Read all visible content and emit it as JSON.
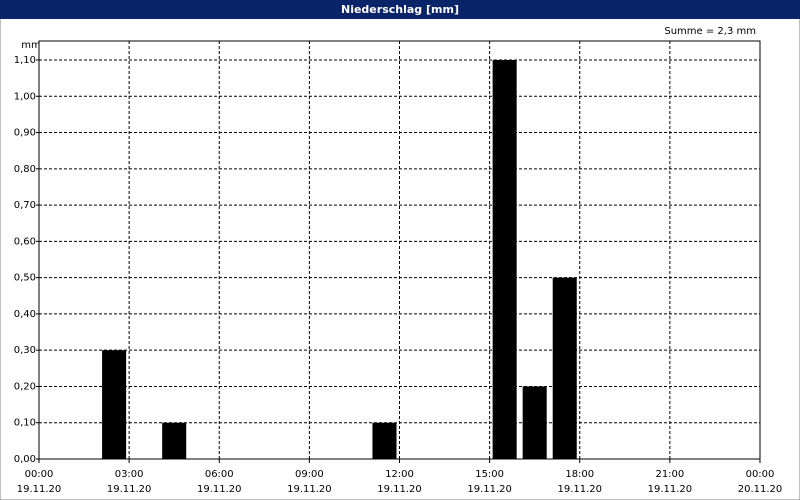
{
  "chart_data": {
    "type": "bar",
    "title": "Niederschlag [mm]",
    "y_label": "mm",
    "annotation": "Summe = 2,3 mm",
    "x": [
      2.5,
      4.5,
      11.5,
      15.5,
      16.5,
      17.5
    ],
    "values": [
      0.3,
      0.1,
      0.1,
      1.1,
      0.2,
      0.5
    ],
    "color": "#000000",
    "xlim": [
      0,
      24
    ],
    "xticks": [
      {
        "value": 0,
        "label": "00:00",
        "date": "19.11.20"
      },
      {
        "value": 3,
        "label": "03:00",
        "date": "19.11.20"
      },
      {
        "value": 6,
        "label": "06:00",
        "date": "19.11.20"
      },
      {
        "value": 9,
        "label": "09:00",
        "date": "19.11.20"
      },
      {
        "value": 12,
        "label": "12:00",
        "date": "19.11.20"
      },
      {
        "value": 15,
        "label": "15:00",
        "date": "19.11.20"
      },
      {
        "value": 18,
        "label": "18:00",
        "date": "19.11.20"
      },
      {
        "value": 21,
        "label": "21:00",
        "date": "19.11.20"
      },
      {
        "value": 24,
        "label": "00:00",
        "date": "20.11.20"
      }
    ],
    "ylim": [
      0,
      1.1
    ],
    "yticks": [
      {
        "value": 0,
        "label": "0,00"
      },
      {
        "value": 0.1,
        "label": "0,10"
      },
      {
        "value": 0.2,
        "label": "0,20"
      },
      {
        "value": 0.3,
        "label": "0,30"
      },
      {
        "value": 0.4,
        "label": "0,40"
      },
      {
        "value": 0.5,
        "label": "0,50"
      },
      {
        "value": 0.6,
        "label": "0,60"
      },
      {
        "value": 0.7,
        "label": "0,70"
      },
      {
        "value": 0.8,
        "label": "0,80"
      },
      {
        "value": 0.9,
        "label": "0,90"
      },
      {
        "value": 1.0,
        "label": "1,00"
      },
      {
        "value": 1.1,
        "label": "1,10"
      }
    ],
    "grid": true
  }
}
